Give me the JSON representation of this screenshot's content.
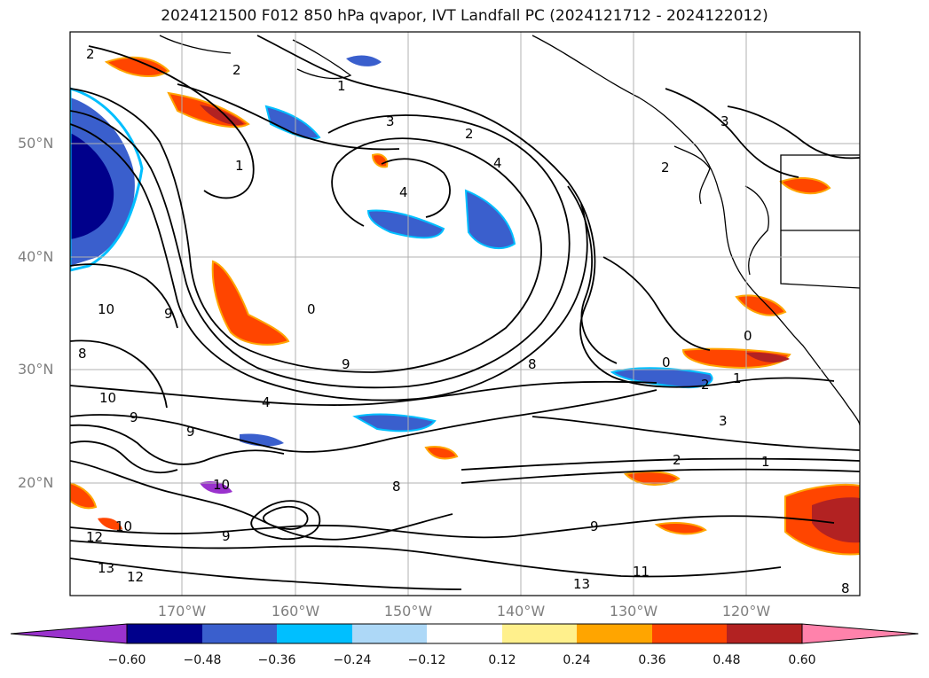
{
  "title": "2024121500 F012 850 hPa qvapor, IVT Landfall PC (2024121712 - 2024122012)",
  "map": {
    "lat_labels": [
      "50°N",
      "40°N",
      "30°N",
      "20°N"
    ],
    "lon_labels": [
      "170°W",
      "160°W",
      "150°W",
      "140°W",
      "130°W",
      "120°W"
    ],
    "contour_labels": [
      "2",
      "2",
      "1",
      "3",
      "2",
      "4",
      "4",
      "1",
      "2",
      "3",
      "0",
      "0",
      "9",
      "8",
      "10",
      "9",
      "8",
      "9",
      "4",
      "10",
      "9",
      "12",
      "13",
      "12",
      "10",
      "9",
      "13",
      "11",
      "8",
      "1",
      "3",
      "2",
      "1",
      "0",
      "2",
      "8",
      "10",
      "9"
    ]
  },
  "colorbar": {
    "ticks": [
      "−0.60",
      "−0.48",
      "−0.36",
      "−0.24",
      "−0.12",
      "0.12",
      "0.24",
      "0.36",
      "0.48",
      "0.60"
    ],
    "colors": [
      "#9a32cd",
      "#00008b",
      "#3a5fcd",
      "#00bfff",
      "#add8f7",
      "#ffffff",
      "#fff08c",
      "#ffa500",
      "#ff4500",
      "#b22222",
      "#ff82ab"
    ]
  },
  "colors": {
    "neg_strong": "#00008b",
    "neg_mid": "#3a5fcd",
    "neg_weak": "#00bfff",
    "pos_weak": "#ffa500",
    "pos_mid": "#ff4500",
    "pos_strong": "#b22222",
    "grid": "#b0b0b0",
    "contour": "#000000"
  }
}
